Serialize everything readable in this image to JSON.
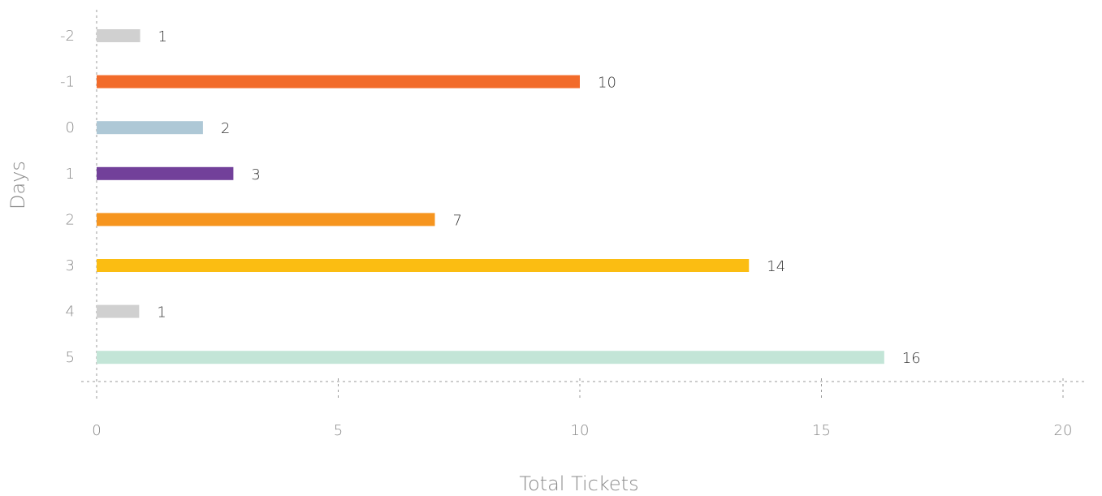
{
  "chart_data": {
    "type": "bar",
    "orientation": "horizontal",
    "categories": [
      "-2",
      "-1",
      "0",
      "1",
      "2",
      "3",
      "4",
      "5"
    ],
    "values": [
      1,
      10,
      2,
      3,
      7,
      14,
      1,
      16
    ],
    "bar_lengths": [
      0.9,
      10.0,
      2.2,
      2.83,
      7.0,
      13.5,
      0.88,
      16.3
    ],
    "colors": [
      "#d0d0d0",
      "#f26b2a",
      "#aec8d6",
      "#72409a",
      "#f6951f",
      "#fbbd12",
      "#d0d0d0",
      "#c3e5d7"
    ],
    "xlabel": "Total Tickets",
    "ylabel": "Days",
    "xlim": [
      0,
      20
    ],
    "xticks": [
      "0",
      "5",
      "10",
      "15",
      "20"
    ],
    "grid": "vertical dashed"
  }
}
